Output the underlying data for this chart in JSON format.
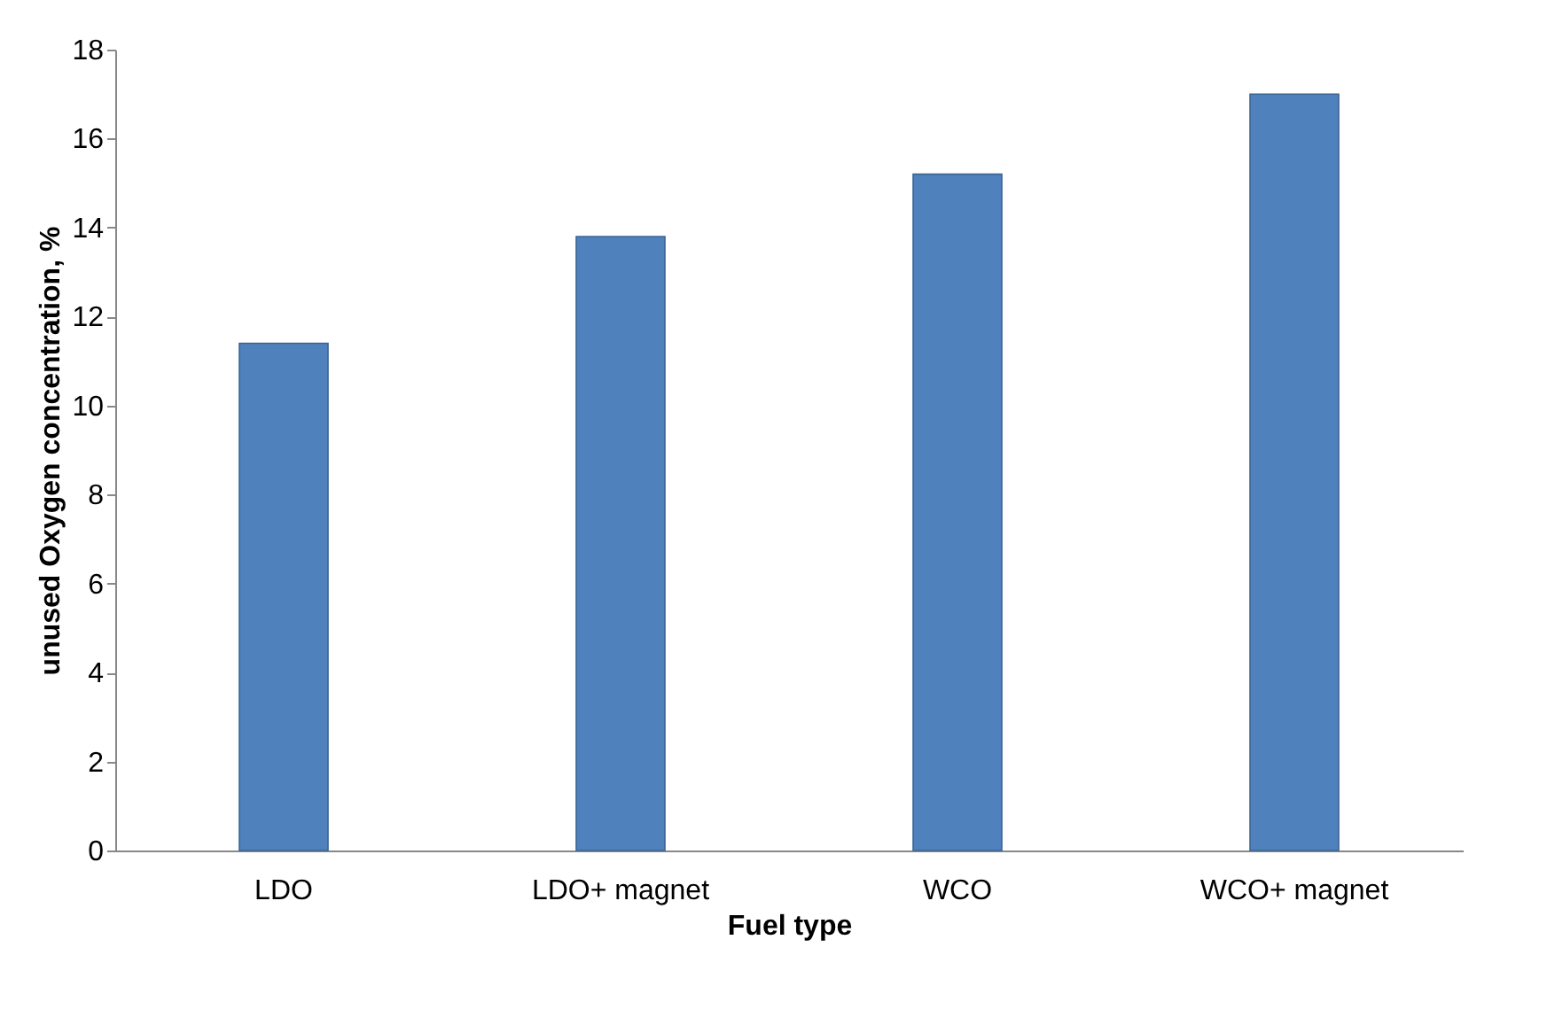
{
  "chart_data": {
    "type": "bar",
    "xlabel": "Fuel type",
    "ylabel": "unused Oxygen concentration, %",
    "categories": [
      "LDO",
      "LDO+ magnet",
      "WCO",
      "WCO+ magnet"
    ],
    "values": [
      11.4,
      13.8,
      15.2,
      17.0
    ],
    "color": "#4f81bd",
    "ylim": [
      0,
      18
    ],
    "yticks": [
      0,
      2,
      4,
      6,
      8,
      10,
      12,
      14,
      16,
      18
    ],
    "grid": false
  }
}
